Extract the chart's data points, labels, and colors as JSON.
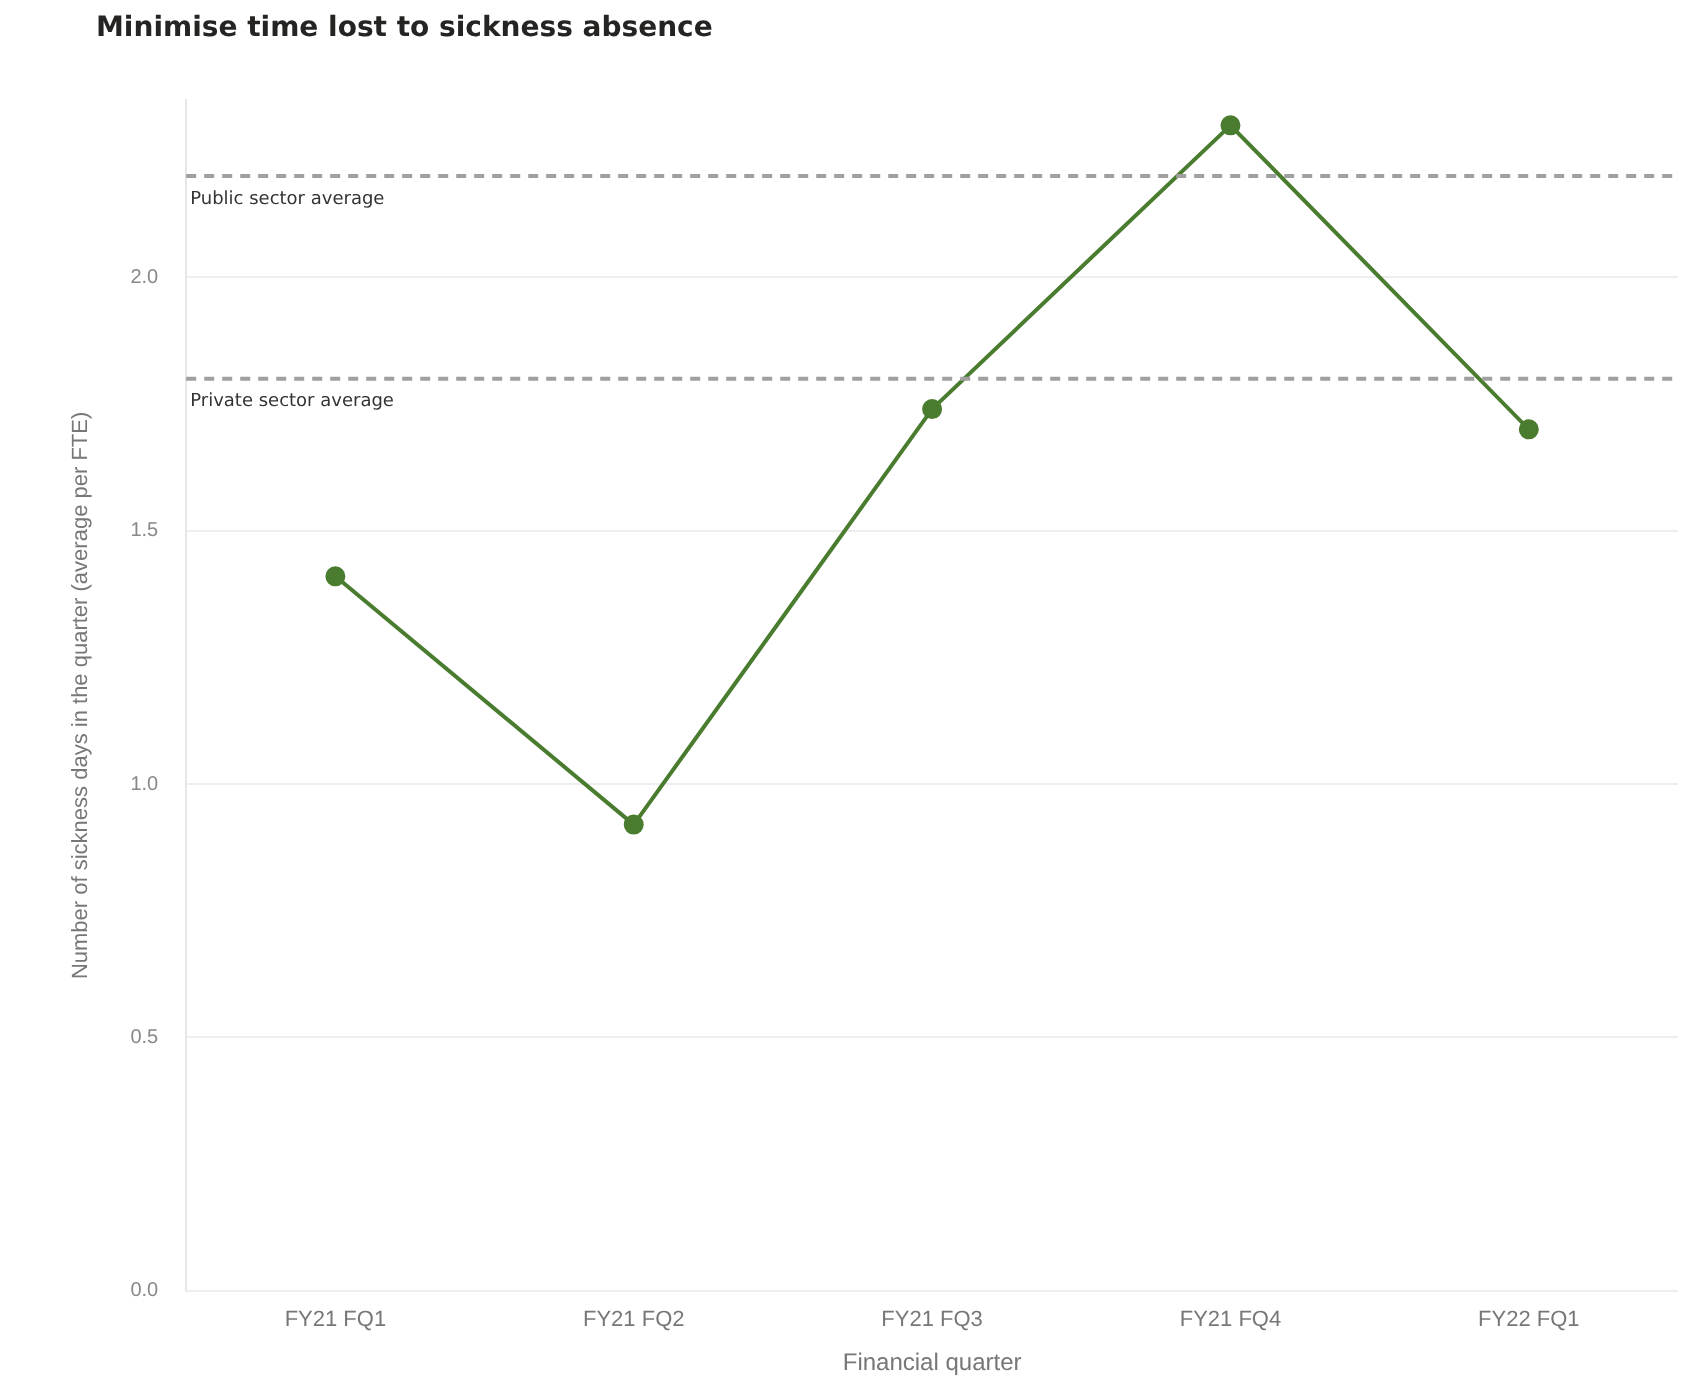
{
  "chart_data": {
    "type": "line",
    "title": "Minimise time lost to sickness absence",
    "xlabel": "Financial quarter",
    "ylabel": "Number of sickness days in the quarter (average per FTE)",
    "categories": [
      "FY21 FQ1",
      "FY21 FQ2",
      "FY21 FQ3",
      "FY21 FQ4",
      "FY22 FQ1"
    ],
    "series": [
      {
        "color": "#4a7c2f",
        "values": [
          1.41,
          0.92,
          1.74,
          2.3,
          1.7
        ]
      }
    ],
    "ylim": [
      0,
      2.35
    ],
    "yticks": [
      {
        "value": 0,
        "label": "0.0"
      },
      {
        "value": 0.5,
        "label": "0.5"
      },
      {
        "value": 1,
        "label": "1.0"
      },
      {
        "value": 1.5,
        "label": "1.5"
      },
      {
        "value": 2,
        "label": "2.0"
      }
    ],
    "ref_lines": [
      {
        "axis": "y",
        "value": 2.2,
        "label": "Public sector average",
        "color": "#a0a0a0",
        "line_style": "dashed"
      },
      {
        "axis": "y",
        "value": 1.8,
        "label": "Private sector average",
        "color": "#a0a0a0",
        "line_style": "dashed"
      }
    ],
    "grid": "y",
    "legend": false,
    "marker": "circle",
    "line_style": "solid"
  }
}
